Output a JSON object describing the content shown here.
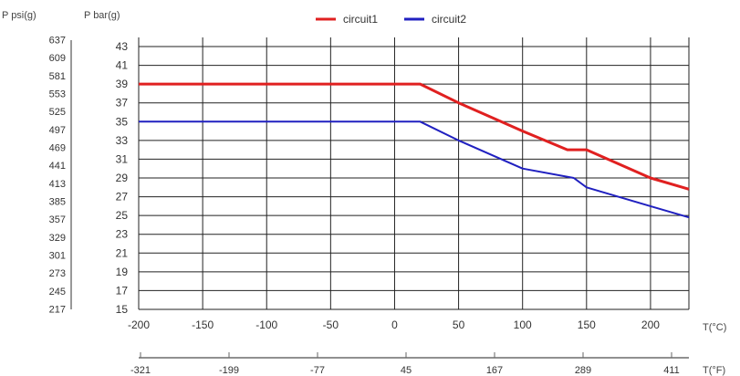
{
  "chart_data": {
    "type": "line",
    "title": "",
    "y_left_label": "P bar(g)",
    "y_outer_label": "P psi(g)",
    "x_label": "T(°C)",
    "x_secondary_label": "T(°F)",
    "xlim": [
      -200,
      230
    ],
    "ylim": [
      15,
      43
    ],
    "x_ticks": [
      -200,
      -150,
      -100,
      -50,
      0,
      50,
      100,
      150,
      200
    ],
    "y_ticks": [
      15,
      17,
      19,
      21,
      23,
      25,
      27,
      29,
      31,
      33,
      35,
      37,
      39,
      41,
      43
    ],
    "psi_ticks": [
      "217",
      "245",
      "273",
      "301",
      "329",
      "357",
      "385",
      "413",
      "441",
      "469",
      "497",
      "525",
      "553",
      "581",
      "609",
      "637"
    ],
    "fahrenheit_ticks": [
      "-321",
      "-199",
      "-77",
      "45",
      "167",
      "289",
      "411"
    ],
    "grid": true,
    "legend_position": "top-center",
    "series": [
      {
        "name": "circuit1",
        "color": "#e02020",
        "points": [
          [
            -200,
            39
          ],
          [
            20,
            39
          ],
          [
            50,
            37
          ],
          [
            100,
            34
          ],
          [
            135,
            32
          ],
          [
            150,
            32
          ],
          [
            200,
            29
          ],
          [
            230,
            27.8
          ]
        ]
      },
      {
        "name": "circuit2",
        "color": "#2020c0",
        "points": [
          [
            -200,
            35
          ],
          [
            20,
            35
          ],
          [
            50,
            33
          ],
          [
            100,
            30
          ],
          [
            140,
            29
          ],
          [
            150,
            28
          ],
          [
            200,
            26
          ],
          [
            230,
            24.8
          ]
        ]
      }
    ]
  }
}
